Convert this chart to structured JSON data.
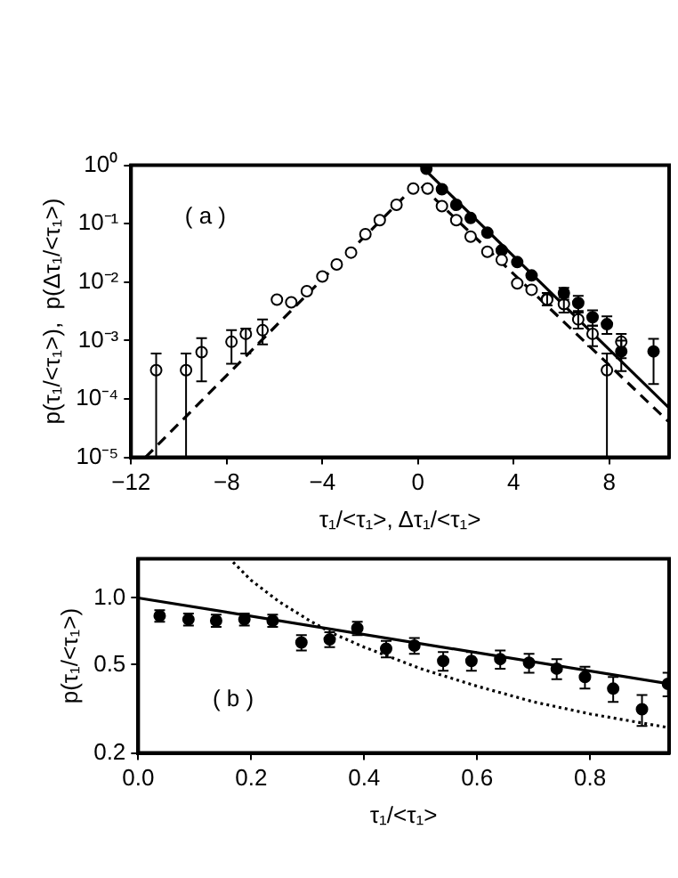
{
  "chart_data": [
    {
      "type": "scatter",
      "xlabel": "τ₁/<τ₁>, Δτ₁/<τ₁>",
      "ylabel": "p(τ₁/<τ₁>),  p(Δτ₁/<τ₁>)",
      "annotations": [
        "( a )"
      ],
      "log": "y",
      "grid": false,
      "legend": false,
      "xlim": [
        -12,
        10.5
      ],
      "xticks": [
        {
          "value": -12,
          "label": "−12"
        },
        {
          "value": -8,
          "label": "−8"
        },
        {
          "value": -4,
          "label": "−4"
        },
        0,
        4,
        8
      ],
      "ylim": [
        1e-05,
        1
      ],
      "yticks": [
        {
          "value": 1e-05,
          "label": "10⁻⁵"
        },
        {
          "value": 0.0001,
          "label": "10⁻⁴"
        },
        {
          "value": 0.001,
          "label": "10⁻³"
        },
        {
          "value": 0.01,
          "label": "10⁻²"
        },
        {
          "value": 0.1,
          "label": "10⁻¹"
        },
        {
          "value": 1,
          "label": "10⁰"
        }
      ],
      "series": [
        {
          "marker": "circle",
          "color": "#ffffff",
          "x": [
            -10.95,
            -9.7,
            -9.05,
            -7.8,
            -7.2,
            -6.5,
            -5.9,
            -5.3,
            -4.65,
            -4.0,
            -3.4,
            -2.8,
            -2.2,
            -1.6,
            -0.9,
            -0.2,
            0.4,
            1.0,
            1.6,
            2.2,
            2.9,
            3.5,
            4.15,
            4.75,
            5.4,
            6.1,
            6.7,
            7.3,
            7.9,
            8.5
          ],
          "values": [
            0.00031,
            0.00031,
            0.00063,
            0.00095,
            0.0013,
            0.0015,
            0.005,
            0.0045,
            0.007,
            0.0125,
            0.02,
            0.032,
            0.066,
            0.115,
            0.21,
            0.4,
            0.4,
            0.2,
            0.115,
            0.06,
            0.033,
            0.024,
            0.0095,
            0.0074,
            0.005,
            0.0042,
            0.0023,
            0.0013,
            0.00031,
            0.00095
          ],
          "errors": [
            [
              1e-05,
              0.0006
            ],
            [
              1e-05,
              0.0006
            ],
            [
              0.0002,
              0.0011
            ],
            [
              0.0004,
              0.0015
            ],
            [
              0.0006,
              0.0016
            ],
            [
              0.00086,
              0.0023
            ],
            null,
            null,
            null,
            null,
            null,
            null,
            null,
            null,
            null,
            null,
            null,
            null,
            null,
            null,
            null,
            null,
            null,
            null,
            null,
            [
              0.003,
              0.0055
            ],
            [
              0.0016,
              0.003
            ],
            [
              0.0008,
              0.0018
            ],
            [
              1e-05,
              0.0006
            ],
            [
              0.0005,
              0.0013
            ]
          ]
        },
        {
          "marker": "circle",
          "color": "#000000",
          "x": [
            0.35,
            1.0,
            1.6,
            2.2,
            2.9,
            3.5,
            4.15,
            4.75,
            5.4,
            6.1,
            6.7,
            7.3,
            7.9,
            8.5,
            9.85
          ],
          "values": [
            0.87,
            0.39,
            0.21,
            0.125,
            0.07,
            0.035,
            0.022,
            0.013,
            0.0052,
            0.0065,
            0.0044,
            0.0025,
            0.0019,
            0.00065,
            0.00065
          ],
          "errors": [
            null,
            null,
            null,
            null,
            null,
            null,
            null,
            null,
            [
              0.004,
              0.0065
            ],
            [
              0.005,
              0.008
            ],
            [
              0.0032,
              0.0058
            ],
            [
              0.0018,
              0.0033
            ],
            [
              0.0013,
              0.0026
            ],
            [
              0.0003,
              0.001
            ],
            [
              0.00018,
              0.00107
            ]
          ]
        },
        {
          "type": "line",
          "marker": "none",
          "line_style": "dashed",
          "color": "#000000",
          "x": [
            -11.4,
            0,
            10.5
          ],
          "values": [
            1e-05,
            0.5,
            4e-05
          ]
        },
        {
          "type": "line",
          "marker": "none",
          "line_style": "solid",
          "color": "#000000",
          "x": [
            0.1,
            10.5
          ],
          "values": [
            1,
            7e-05
          ]
        }
      ]
    },
    {
      "type": "scatter",
      "xlabel": "τ₁/<τ₁>",
      "ylabel": "p(τ₁/<τ₁>)",
      "annotations": [
        "( b )"
      ],
      "log": "y",
      "grid": false,
      "legend": false,
      "xlim": [
        0,
        0.94
      ],
      "xticks": [
        {
          "value": 0,
          "label": "0.0"
        },
        0.2,
        0.4,
        0.6,
        0.8
      ],
      "ylim": [
        0.2,
        1.5
      ],
      "yticks": [
        0.2,
        0.5,
        {
          "value": 1,
          "label": "1.0"
        }
      ],
      "series": [
        {
          "marker": "circle",
          "color": "#000000",
          "x": [
            0.038,
            0.089,
            0.138,
            0.188,
            0.238,
            0.289,
            0.339,
            0.388,
            0.439,
            0.489,
            0.54,
            0.59,
            0.641,
            0.692,
            0.741,
            0.791,
            0.841,
            0.892,
            0.938
          ],
          "values": [
            0.83,
            0.8,
            0.79,
            0.8,
            0.79,
            0.63,
            0.65,
            0.73,
            0.59,
            0.61,
            0.52,
            0.52,
            0.53,
            0.51,
            0.48,
            0.44,
            0.39,
            0.315,
            0.41
          ],
          "errors": [
            0.05,
            0.05,
            0.05,
            0.05,
            0.05,
            0.05,
            0.05,
            0.05,
            0.05,
            0.05,
            0.05,
            0.05,
            0.05,
            0.05,
            0.05,
            0.05,
            0.05,
            0.05,
            0.05
          ]
        },
        {
          "type": "line",
          "marker": "none",
          "line_style": "solid",
          "color": "#000000",
          "x": [
            0,
            0.94
          ],
          "values": [
            1.0,
            0.41
          ]
        },
        {
          "type": "line",
          "marker": "none",
          "line_style": "dotted",
          "color": "#000000",
          "x": [
            0.168,
            0.2,
            0.25,
            0.3,
            0.34,
            0.4,
            0.5,
            0.6,
            0.7,
            0.8,
            0.94
          ],
          "values": [
            1.45,
            1.2,
            0.96,
            0.8,
            0.7,
            0.6,
            0.48,
            0.4,
            0.34,
            0.3,
            0.26
          ]
        }
      ]
    }
  ]
}
